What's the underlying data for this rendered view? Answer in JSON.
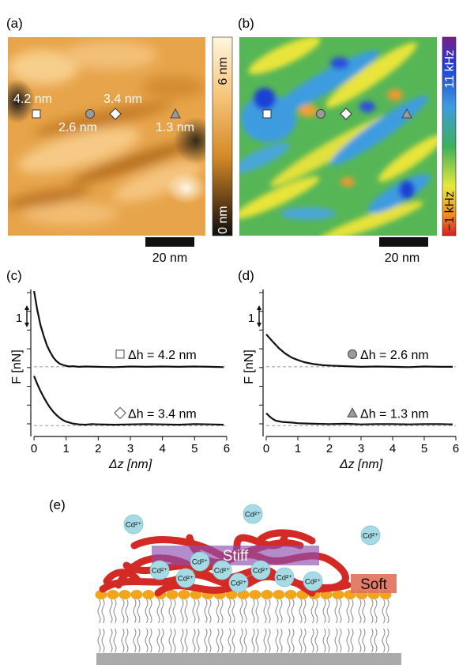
{
  "panels": {
    "a": {
      "label": "(a)",
      "colorbar": {
        "max_label": "6 nm",
        "min_label": "0 nm"
      },
      "scale_bar": "20 nm",
      "markers": [
        {
          "shape": "square",
          "label": "4.2 nm"
        },
        {
          "shape": "circle",
          "label": "2.6 nm"
        },
        {
          "shape": "diamond",
          "label": "3.4 nm"
        },
        {
          "shape": "triangle",
          "label": "1.3 nm"
        }
      ]
    },
    "b": {
      "label": "(b)",
      "colorbar": {
        "max_label": "11 kHz",
        "min_label": "−1 kHz"
      },
      "scale_bar": "20 nm"
    },
    "c": {
      "label": "(c)"
    },
    "d": {
      "label": "(d)"
    },
    "e": {
      "label": "(e)",
      "ion_label": "Cd²⁺",
      "stiff_label": "Stiff",
      "soft_label": "Soft"
    }
  },
  "chart_data": [
    {
      "type": "line",
      "panel": "c",
      "xlabel": "Δz [nm]",
      "ylabel": "F [nN]",
      "scale_label": "1",
      "xticks": [
        0,
        1,
        2,
        3,
        4,
        5,
        6
      ],
      "xlim": [
        -0.1,
        6.1
      ],
      "ylim": [
        -0.35,
        4.4
      ],
      "series": [
        {
          "name": "Δh = 4.2 nm",
          "marker": "square",
          "baseline": 1.9,
          "x": [
            0.0,
            0.1,
            0.2,
            0.3,
            0.4,
            0.5,
            0.6,
            0.7,
            0.8,
            0.9,
            1.0,
            1.1,
            1.2,
            1.4,
            1.6,
            2.0,
            2.5,
            3.0,
            3.5,
            4.0,
            4.5,
            5.0,
            5.5,
            5.9
          ],
          "y": [
            4.35,
            3.75,
            3.25,
            2.9,
            2.6,
            2.38,
            2.2,
            2.08,
            2.0,
            1.96,
            1.93,
            1.91,
            1.92,
            1.9,
            1.91,
            1.9,
            1.89,
            1.91,
            1.9,
            1.91,
            1.9,
            1.91,
            1.9,
            1.89
          ]
        },
        {
          "name": "Δh = 3.4 nm",
          "marker": "diamond",
          "baseline": 0.0,
          "x": [
            0.0,
            0.1,
            0.2,
            0.3,
            0.4,
            0.5,
            0.6,
            0.7,
            0.8,
            0.9,
            1.0,
            1.2,
            1.4,
            1.6,
            1.8,
            2.0,
            2.5,
            3.0,
            3.5,
            4.0,
            4.5,
            5.0,
            5.5,
            5.9
          ],
          "y": [
            1.6,
            1.35,
            1.12,
            0.92,
            0.74,
            0.58,
            0.45,
            0.34,
            0.25,
            0.18,
            0.13,
            0.07,
            0.04,
            0.03,
            0.05,
            0.04,
            0.03,
            0.04,
            0.05,
            0.04,
            0.03,
            0.05,
            0.04,
            0.03
          ]
        }
      ]
    },
    {
      "type": "line",
      "panel": "d",
      "xlabel": "Δz [nm]",
      "ylabel": "F [nN]",
      "scale_label": "1",
      "xticks": [
        0,
        1,
        2,
        3,
        4,
        5,
        6
      ],
      "xlim": [
        -0.1,
        6.1
      ],
      "ylim": [
        -0.35,
        4.4
      ],
      "series": [
        {
          "name": "Δh = 2.6 nm",
          "marker": "circle",
          "baseline": 1.9,
          "x": [
            0.0,
            0.2,
            0.4,
            0.6,
            0.8,
            1.0,
            1.2,
            1.5,
            1.8,
            2.0,
            2.5,
            3.0,
            3.5,
            4.0,
            4.5,
            5.0,
            5.5,
            5.9
          ],
          "y": [
            2.95,
            2.72,
            2.5,
            2.33,
            2.2,
            2.12,
            2.05,
            1.99,
            1.95,
            1.94,
            1.92,
            1.9,
            1.91,
            1.9,
            1.89,
            1.91,
            1.9,
            1.9
          ]
        },
        {
          "name": "Δh = 1.3 nm",
          "marker": "triangle",
          "baseline": 0.0,
          "x": [
            0.0,
            0.1,
            0.2,
            0.3,
            0.5,
            0.8,
            1.0,
            1.5,
            2.0,
            2.5,
            3.0,
            3.5,
            4.0,
            4.5,
            5.0,
            5.5,
            5.9
          ],
          "y": [
            0.4,
            0.3,
            0.22,
            0.16,
            0.12,
            0.1,
            0.08,
            0.06,
            0.05,
            0.06,
            0.04,
            0.05,
            0.05,
            0.04,
            0.05,
            0.05,
            0.04
          ]
        }
      ]
    }
  ],
  "colors": {
    "line": "#111111",
    "baseline": "#999999",
    "protein": "#d42a25",
    "ion": "#a6dbe6",
    "stiff_box": "#8c4fb0",
    "soft_box": "#e0705a",
    "headgroup": "#f0a51c",
    "substrate": "#aaaaaa"
  }
}
